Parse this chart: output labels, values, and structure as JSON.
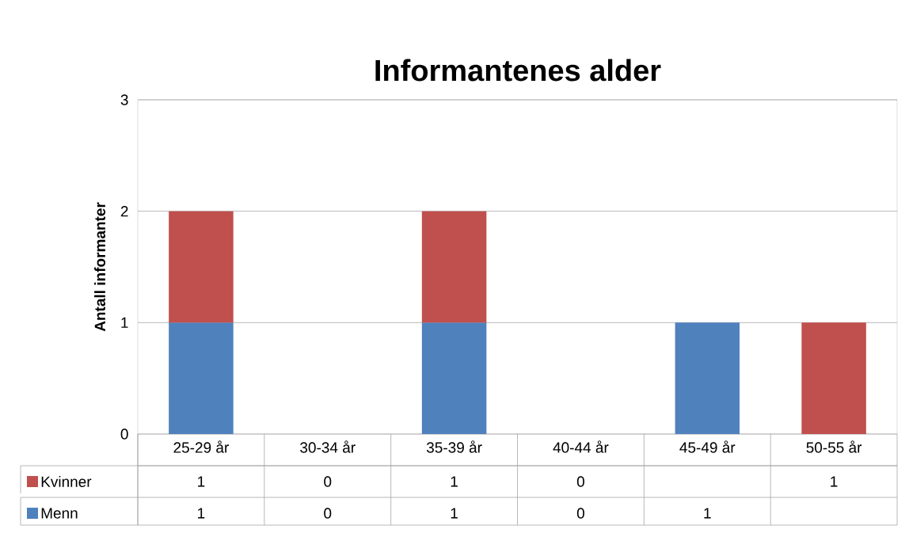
{
  "chart_data": {
    "type": "bar",
    "stacked": true,
    "title": "Informantenes alder",
    "ylabel": "Antall informanter",
    "categories": [
      "25-29 år",
      "30-34 år",
      "35-39 år",
      "40-44 år",
      "45-49 år",
      "50-55 år"
    ],
    "series": [
      {
        "name": "Menn",
        "color": "#4f81bd",
        "values": [
          1,
          0,
          1,
          0,
          1,
          null
        ]
      },
      {
        "name": "Kvinner",
        "color": "#c0504d",
        "values": [
          1,
          0,
          1,
          0,
          null,
          1
        ]
      }
    ],
    "ylim": [
      0,
      3
    ],
    "yticks": [
      0,
      1,
      2,
      3
    ],
    "grid": "y",
    "legend": "bottom",
    "data_labels": true
  }
}
